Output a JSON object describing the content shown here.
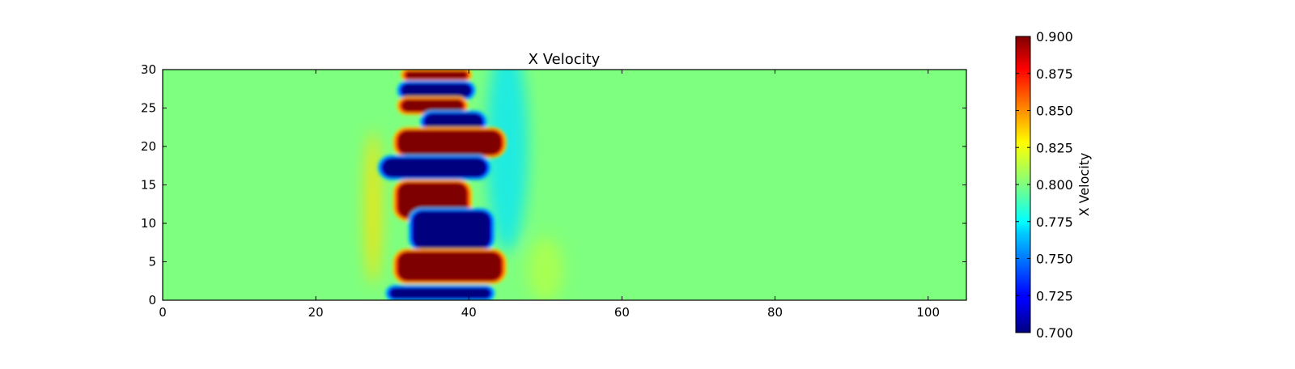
{
  "chart_data": {
    "type": "heatmap",
    "title": "X Velocity",
    "xlabel": "",
    "ylabel": "",
    "xlim": [
      0,
      105
    ],
    "ylim": [
      0,
      30
    ],
    "x_ticks": [
      0,
      20,
      40,
      60,
      80,
      100
    ],
    "y_ticks": [
      0,
      5,
      10,
      15,
      20,
      25,
      30
    ],
    "colormap": "jet",
    "colorbar": {
      "label": "X Velocity",
      "range": [
        0.7,
        0.9
      ],
      "ticks": [
        "0.700",
        "0.725",
        "0.750",
        "0.775",
        "0.800",
        "0.825",
        "0.850",
        "0.875",
        "0.900"
      ]
    },
    "background_value": 0.8,
    "features": [
      {
        "kind": "high",
        "x_range": [
          31.5,
          40
        ],
        "y_range": [
          28.6,
          30
        ],
        "value": 0.9
      },
      {
        "kind": "low",
        "x_range": [
          31,
          40.5
        ],
        "y_range": [
          26.2,
          28.4
        ],
        "value": 0.7
      },
      {
        "kind": "high",
        "x_range": [
          31,
          39.5
        ],
        "y_range": [
          24.3,
          26.3
        ],
        "value": 0.9
      },
      {
        "kind": "low",
        "x_range": [
          34,
          42
        ],
        "y_range": [
          21.9,
          24.5
        ],
        "value": 0.7
      },
      {
        "kind": "high",
        "x_range": [
          30.5,
          44.5
        ],
        "y_range": [
          18.7,
          22.3
        ],
        "value": 0.9
      },
      {
        "kind": "low",
        "x_range": [
          28.5,
          42.5
        ],
        "y_range": [
          15.8,
          18.7
        ],
        "value": 0.7
      },
      {
        "kind": "high",
        "x_range": [
          30.5,
          40
        ],
        "y_range": [
          10.5,
          15.5
        ],
        "value": 0.9
      },
      {
        "kind": "low",
        "x_range": [
          32.5,
          43
        ],
        "y_range": [
          6.5,
          11.8
        ],
        "value": 0.7
      },
      {
        "kind": "high",
        "x_range": [
          30.5,
          44.5
        ],
        "y_range": [
          2.3,
          6.5
        ],
        "value": 0.9
      },
      {
        "kind": "low",
        "x_range": [
          29.5,
          43
        ],
        "y_range": [
          0,
          1.8
        ],
        "value": 0.7
      }
    ]
  }
}
